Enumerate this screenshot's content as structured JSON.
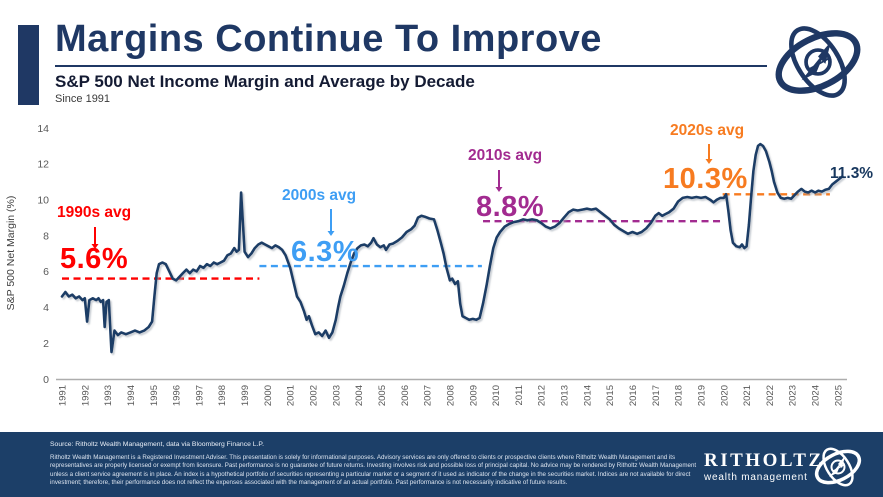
{
  "header": {
    "title": "Margins Continue To Improve",
    "subtitle": "S&P 500 Net Income Margin and Average by Decade",
    "since": "Since 1991"
  },
  "chart_data": {
    "type": "line",
    "title": "S&P 500 Net Income Margin and Average by Decade",
    "xlabel": "",
    "ylabel": "S&P 500 Net Margin (%)",
    "ylim": [
      0,
      14
    ],
    "yticks": [
      0,
      2,
      4,
      6,
      8,
      10,
      12,
      14
    ],
    "xticks": [
      1991,
      1992,
      1993,
      1994,
      1995,
      1996,
      1997,
      1998,
      1999,
      2000,
      2001,
      2002,
      2003,
      2004,
      2005,
      2006,
      2007,
      2008,
      2009,
      2010,
      2011,
      2012,
      2013,
      2014,
      2015,
      2016,
      2017,
      2018,
      2019,
      2020,
      2021,
      2022,
      2023,
      2024,
      2025
    ],
    "grid": false,
    "legend": "none",
    "line_color": "#1A3D66",
    "end_label": "11.3%",
    "averages": [
      {
        "label": "1990s avg",
        "value": 5.6,
        "value_label": "5.6%",
        "start": 1991.0,
        "end": 1999.65,
        "color": "#FF0000"
      },
      {
        "label": "2000s avg",
        "value": 6.3,
        "value_label": "6.3%",
        "start": 1999.65,
        "end": 2009.4,
        "color": "#3E9EF4"
      },
      {
        "label": "2010s avg",
        "value": 8.8,
        "value_label": "8.8%",
        "start": 2009.45,
        "end": 2019.9,
        "color": "#A22B90"
      },
      {
        "label": "2020s avg",
        "value": 10.3,
        "value_label": "10.3%",
        "start": 2019.95,
        "end": 2024.65,
        "color": "#F77B20"
      }
    ],
    "series": [
      [
        1991.0,
        4.6
      ],
      [
        1991.15,
        4.85
      ],
      [
        1991.3,
        4.6
      ],
      [
        1991.45,
        4.7
      ],
      [
        1991.6,
        4.5
      ],
      [
        1991.75,
        4.6
      ],
      [
        1991.9,
        4.4
      ],
      [
        1992.0,
        4.5
      ],
      [
        1992.1,
        3.2
      ],
      [
        1992.2,
        4.4
      ],
      [
        1992.35,
        4.5
      ],
      [
        1992.5,
        4.4
      ],
      [
        1992.6,
        4.5
      ],
      [
        1992.7,
        4.3
      ],
      [
        1992.8,
        4.4
      ],
      [
        1992.87,
        2.9
      ],
      [
        1992.95,
        4.3
      ],
      [
        1993.05,
        4.4
      ],
      [
        1993.17,
        1.5
      ],
      [
        1993.3,
        2.7
      ],
      [
        1993.45,
        2.45
      ],
      [
        1993.6,
        2.6
      ],
      [
        1993.8,
        2.5
      ],
      [
        1994.0,
        2.6
      ],
      [
        1994.2,
        2.7
      ],
      [
        1994.4,
        2.6
      ],
      [
        1994.6,
        2.7
      ],
      [
        1994.8,
        2.9
      ],
      [
        1994.95,
        3.2
      ],
      [
        1995.05,
        4.6
      ],
      [
        1995.15,
        5.9
      ],
      [
        1995.25,
        6.4
      ],
      [
        1995.4,
        6.5
      ],
      [
        1995.55,
        6.4
      ],
      [
        1995.7,
        6.0
      ],
      [
        1995.85,
        5.6
      ],
      [
        1996.0,
        5.5
      ],
      [
        1996.15,
        5.7
      ],
      [
        1996.3,
        5.9
      ],
      [
        1996.45,
        6.1
      ],
      [
        1996.6,
        5.9
      ],
      [
        1996.75,
        6.1
      ],
      [
        1996.9,
        6.0
      ],
      [
        1997.05,
        6.3
      ],
      [
        1997.2,
        6.2
      ],
      [
        1997.35,
        6.4
      ],
      [
        1997.5,
        6.3
      ],
      [
        1997.65,
        6.5
      ],
      [
        1997.8,
        6.4
      ],
      [
        1997.95,
        6.5
      ],
      [
        1998.1,
        6.6
      ],
      [
        1998.25,
        6.9
      ],
      [
        1998.4,
        7.0
      ],
      [
        1998.55,
        7.3
      ],
      [
        1998.65,
        7.1
      ],
      [
        1998.75,
        7.2
      ],
      [
        1998.85,
        10.4
      ],
      [
        1999.0,
        7.1
      ],
      [
        1999.15,
        6.8
      ],
      [
        1999.3,
        7.0
      ],
      [
        1999.45,
        7.3
      ],
      [
        1999.6,
        7.5
      ],
      [
        1999.75,
        7.6
      ],
      [
        1999.9,
        7.5
      ],
      [
        2000.05,
        7.4
      ],
      [
        2000.2,
        7.3
      ],
      [
        2000.35,
        7.45
      ],
      [
        2000.5,
        7.35
      ],
      [
        2000.65,
        7.2
      ],
      [
        2000.8,
        6.9
      ],
      [
        2001.0,
        6.2
      ],
      [
        2001.15,
        5.4
      ],
      [
        2001.3,
        4.6
      ],
      [
        2001.45,
        4.3
      ],
      [
        2001.6,
        3.8
      ],
      [
        2001.72,
        3.3
      ],
      [
        2001.82,
        3.5
      ],
      [
        2001.95,
        3.0
      ],
      [
        2002.1,
        2.5
      ],
      [
        2002.25,
        2.6
      ],
      [
        2002.4,
        2.4
      ],
      [
        2002.55,
        2.7
      ],
      [
        2002.7,
        2.3
      ],
      [
        2002.85,
        2.6
      ],
      [
        2003.0,
        3.3
      ],
      [
        2003.1,
        4.0
      ],
      [
        2003.2,
        4.6
      ],
      [
        2003.35,
        5.2
      ],
      [
        2003.5,
        5.9
      ],
      [
        2003.65,
        6.5
      ],
      [
        2003.8,
        7.0
      ],
      [
        2003.95,
        7.3
      ],
      [
        2004.1,
        7.45
      ],
      [
        2004.25,
        7.5
      ],
      [
        2004.4,
        7.4
      ],
      [
        2004.55,
        7.6
      ],
      [
        2004.65,
        7.85
      ],
      [
        2004.8,
        7.5
      ],
      [
        2004.95,
        7.35
      ],
      [
        2005.1,
        7.45
      ],
      [
        2005.2,
        7.2
      ],
      [
        2005.35,
        7.5
      ],
      [
        2005.5,
        7.55
      ],
      [
        2005.7,
        7.7
      ],
      [
        2005.9,
        7.9
      ],
      [
        2006.1,
        8.2
      ],
      [
        2006.3,
        8.35
      ],
      [
        2006.45,
        8.55
      ],
      [
        2006.6,
        9.0
      ],
      [
        2006.75,
        9.1
      ],
      [
        2006.9,
        9.05
      ],
      [
        2007.1,
        8.95
      ],
      [
        2007.3,
        8.9
      ],
      [
        2007.45,
        8.3
      ],
      [
        2007.6,
        7.6
      ],
      [
        2007.72,
        7.0
      ],
      [
        2007.85,
        6.2
      ],
      [
        2008.0,
        5.5
      ],
      [
        2008.1,
        5.6
      ],
      [
        2008.22,
        5.3
      ],
      [
        2008.35,
        5.45
      ],
      [
        2008.45,
        4.2
      ],
      [
        2008.55,
        3.5
      ],
      [
        2008.7,
        3.4
      ],
      [
        2008.85,
        3.3
      ],
      [
        2009.0,
        3.35
      ],
      [
        2009.15,
        3.3
      ],
      [
        2009.3,
        3.4
      ],
      [
        2009.45,
        4.2
      ],
      [
        2009.6,
        5.2
      ],
      [
        2009.75,
        6.3
      ],
      [
        2009.9,
        7.3
      ],
      [
        2010.05,
        7.9
      ],
      [
        2010.2,
        8.2
      ],
      [
        2010.4,
        8.5
      ],
      [
        2010.6,
        8.65
      ],
      [
        2010.8,
        8.75
      ],
      [
        2011.0,
        8.8
      ],
      [
        2011.2,
        8.9
      ],
      [
        2011.4,
        8.85
      ],
      [
        2011.6,
        8.9
      ],
      [
        2011.8,
        8.85
      ],
      [
        2012.0,
        8.7
      ],
      [
        2012.2,
        8.5
      ],
      [
        2012.4,
        8.4
      ],
      [
        2012.6,
        8.5
      ],
      [
        2012.8,
        8.7
      ],
      [
        2013.0,
        9.0
      ],
      [
        2013.2,
        9.3
      ],
      [
        2013.4,
        9.45
      ],
      [
        2013.6,
        9.4
      ],
      [
        2013.8,
        9.45
      ],
      [
        2014.0,
        9.5
      ],
      [
        2014.2,
        9.45
      ],
      [
        2014.4,
        9.5
      ],
      [
        2014.6,
        9.3
      ],
      [
        2014.8,
        9.1
      ],
      [
        2015.0,
        8.9
      ],
      [
        2015.2,
        8.6
      ],
      [
        2015.4,
        8.4
      ],
      [
        2015.6,
        8.25
      ],
      [
        2015.8,
        8.1
      ],
      [
        2016.0,
        8.2
      ],
      [
        2016.2,
        8.1
      ],
      [
        2016.4,
        8.2
      ],
      [
        2016.6,
        8.4
      ],
      [
        2016.8,
        8.7
      ],
      [
        2017.0,
        9.1
      ],
      [
        2017.15,
        9.25
      ],
      [
        2017.3,
        9.1
      ],
      [
        2017.45,
        9.2
      ],
      [
        2017.6,
        9.3
      ],
      [
        2017.8,
        9.5
      ],
      [
        2018.0,
        9.9
      ],
      [
        2018.2,
        10.1
      ],
      [
        2018.4,
        10.15
      ],
      [
        2018.6,
        10.1
      ],
      [
        2018.8,
        10.15
      ],
      [
        2019.0,
        10.1
      ],
      [
        2019.2,
        10.15
      ],
      [
        2019.4,
        10.0
      ],
      [
        2019.55,
        9.85
      ],
      [
        2019.7,
        10.0
      ],
      [
        2019.85,
        10.1
      ],
      [
        2020.0,
        10.1
      ],
      [
        2020.1,
        10.3
      ],
      [
        2020.2,
        9.4
      ],
      [
        2020.3,
        8.3
      ],
      [
        2020.4,
        7.6
      ],
      [
        2020.55,
        7.4
      ],
      [
        2020.7,
        7.35
      ],
      [
        2020.8,
        7.5
      ],
      [
        2020.9,
        7.3
      ],
      [
        2021.0,
        7.4
      ],
      [
        2021.1,
        8.6
      ],
      [
        2021.2,
        10.2
      ],
      [
        2021.3,
        11.6
      ],
      [
        2021.4,
        12.5
      ],
      [
        2021.5,
        13.0
      ],
      [
        2021.6,
        13.1
      ],
      [
        2021.72,
        13.0
      ],
      [
        2021.85,
        12.7
      ],
      [
        2022.0,
        12.1
      ],
      [
        2022.1,
        11.6
      ],
      [
        2022.2,
        11.0
      ],
      [
        2022.35,
        10.4
      ],
      [
        2022.5,
        10.1
      ],
      [
        2022.65,
        10.05
      ],
      [
        2022.8,
        10.1
      ],
      [
        2022.95,
        10.05
      ],
      [
        2023.1,
        10.25
      ],
      [
        2023.25,
        10.45
      ],
      [
        2023.4,
        10.6
      ],
      [
        2023.55,
        10.45
      ],
      [
        2023.7,
        10.4
      ],
      [
        2023.85,
        10.5
      ],
      [
        2024.0,
        10.4
      ],
      [
        2024.15,
        10.5
      ],
      [
        2024.3,
        10.45
      ],
      [
        2024.45,
        10.55
      ],
      [
        2024.6,
        10.6
      ],
      [
        2024.75,
        10.85
      ],
      [
        2024.9,
        11.0
      ],
      [
        2025.05,
        11.15
      ],
      [
        2025.2,
        11.3
      ]
    ]
  },
  "footer": {
    "source": "Source: Ritholtz Wealth Management, data via Bloomberg Finance L.P.",
    "disclaimer": "Ritholtz Wealth Management is a Registered Investment Adviser. This presentation is solely for informational purposes. Advisory services are only offered to clients or prospective clients where Ritholtz Wealth Management and its representatives are properly licensed or exempt from licensure. Past performance is no guarantee of future returns. Investing involves risk and possible loss of principal capital. No advice may be rendered by Ritholtz Wealth Management unless a client service agreement is in place. An index is a hypothetical portfolio of securities representing a particular market or a segment of it used as indicator of the change in the securities market. Indices are not available for direct investment; therefore, their performance does not reflect the expenses associated with the management of an actual portfolio. Past performance is not necessarily indicative of future results.",
    "brand_name": "RITHOLTZ",
    "brand_sub": "wealth management"
  }
}
